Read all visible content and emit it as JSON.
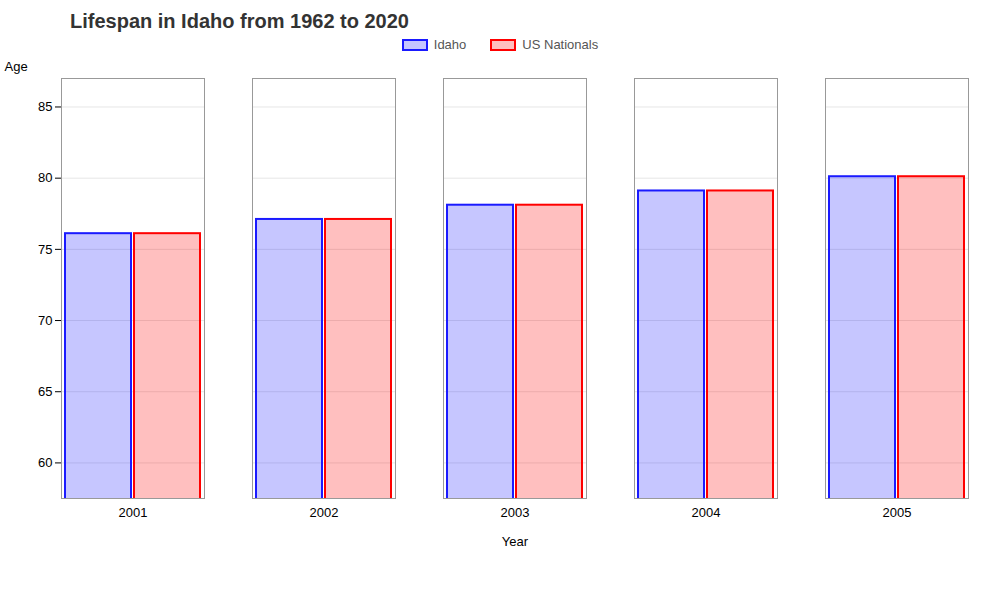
{
  "chart_data": {
    "type": "bar",
    "title": "Lifespan in Idaho from 1962 to 2020",
    "xlabel": "Year",
    "ylabel": "Age",
    "categories": [
      "2001",
      "2002",
      "2003",
      "2004",
      "2005"
    ],
    "series": [
      {
        "name": "Idaho",
        "color": "#1a1aff",
        "values": [
          76.1,
          77.1,
          78.1,
          79.1,
          80.1
        ]
      },
      {
        "name": "US Nationals",
        "color": "#ff0000",
        "values": [
          76.1,
          77.1,
          78.1,
          79.1,
          80.1
        ]
      }
    ],
    "ylim": [
      57.5,
      87
    ],
    "yticks": [
      60,
      65,
      70,
      75,
      80,
      85
    ],
    "grid": true,
    "legend": "top"
  }
}
